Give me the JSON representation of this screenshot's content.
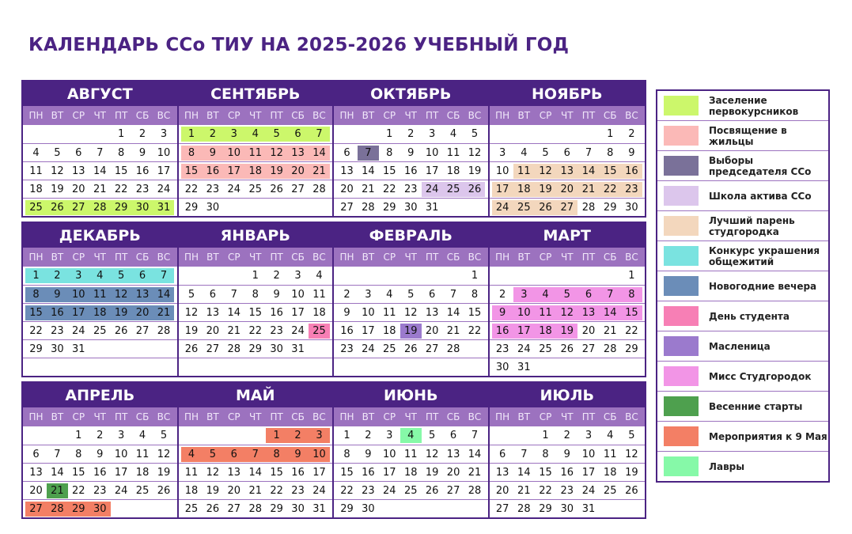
{
  "title": "КАЛЕНДАРЬ ССо ТИУ НА 2025-2026 УЧЕБНЫЙ ГОД",
  "weekdays": [
    "ПН",
    "ВТ",
    "СР",
    "ЧТ",
    "ПТ",
    "СБ",
    "ВС"
  ],
  "legend": [
    {
      "key": "zas",
      "label": "Заселение первокурсников",
      "color": "#ccf76b"
    },
    {
      "key": "pos",
      "label": "Посвящение в жильцы",
      "color": "#fbb9b7"
    },
    {
      "key": "vyb",
      "label": "Выборы председателя ССо",
      "color": "#7a7199"
    },
    {
      "key": "shk",
      "label": "Школа актива ССо",
      "color": "#dcc6ec"
    },
    {
      "key": "lpa",
      "label": "Лучший парень студгородка",
      "color": "#f3d7bd"
    },
    {
      "key": "kon",
      "label": "Конкурс украшения общежитий",
      "color": "#7ae3e0"
    },
    {
      "key": "nov",
      "label": "Новогодние вечера",
      "color": "#6b8db8"
    },
    {
      "key": "den",
      "label": "День студента",
      "color": "#f77fb5"
    },
    {
      "key": "mas",
      "label": "Масленица",
      "color": "#9b7acd"
    },
    {
      "key": "mis",
      "label": "Мисс Студгородок",
      "color": "#f295e6"
    },
    {
      "key": "ves",
      "label": "Весенние старты",
      "color": "#4ea04e"
    },
    {
      "key": "may",
      "label": "Мероприятия к 9 Мая",
      "color": "#f37f65"
    },
    {
      "key": "lav",
      "label": "Лавры",
      "color": "#86f9a8"
    }
  ],
  "bands": [
    {
      "rows": 5,
      "months": [
        {
          "name": "АВГУСТ",
          "start_weekday": 5,
          "days": 31,
          "events": [
            {
              "from": 25,
              "to": 31,
              "event": "zas"
            }
          ]
        },
        {
          "name": "СЕНТЯБРЬ",
          "start_weekday": 1,
          "days": 30,
          "events": [
            {
              "from": 1,
              "to": 7,
              "event": "zas"
            },
            {
              "from": 8,
              "to": 21,
              "event": "pos"
            }
          ]
        },
        {
          "name": "ОКТЯБРЬ",
          "start_weekday": 3,
          "days": 31,
          "events": [
            {
              "from": 7,
              "to": 7,
              "event": "vyb"
            },
            {
              "from": 24,
              "to": 26,
              "event": "shk"
            }
          ]
        },
        {
          "name": "НОЯБРЬ",
          "start_weekday": 6,
          "days": 30,
          "events": [
            {
              "from": 11,
              "to": 27,
              "event": "lpa"
            }
          ]
        }
      ]
    },
    {
      "rows": 6,
      "months": [
        {
          "name": "ДЕКАБРЬ",
          "start_weekday": 1,
          "days": 31,
          "events": [
            {
              "from": 1,
              "to": 7,
              "event": "kon"
            },
            {
              "from": 8,
              "to": 21,
              "event": "nov"
            }
          ]
        },
        {
          "name": "ЯНВАРЬ",
          "start_weekday": 4,
          "days": 31,
          "events": [
            {
              "from": 25,
              "to": 25,
              "event": "den"
            }
          ]
        },
        {
          "name": "ФЕВРАЛЬ",
          "start_weekday": 7,
          "days": 28,
          "events": [
            {
              "from": 19,
              "to": 19,
              "event": "mas"
            }
          ]
        },
        {
          "name": "МАРТ",
          "start_weekday": 7,
          "days": 31,
          "events": [
            {
              "from": 3,
              "to": 19,
              "event": "mis"
            }
          ]
        }
      ]
    },
    {
      "rows": 5,
      "months": [
        {
          "name": "АПРЕЛЬ",
          "start_weekday": 3,
          "days": 30,
          "events": [
            {
              "from": 21,
              "to": 21,
              "event": "ves"
            },
            {
              "from": 27,
              "to": 30,
              "event": "may"
            }
          ]
        },
        {
          "name": "МАЙ",
          "start_weekday": 5,
          "days": 31,
          "events": [
            {
              "from": 1,
              "to": 10,
              "event": "may"
            }
          ]
        },
        {
          "name": "ИЮНЬ",
          "start_weekday": 1,
          "days": 30,
          "events": [
            {
              "from": 4,
              "to": 4,
              "event": "lav"
            }
          ]
        },
        {
          "name": "ИЮЛЬ",
          "start_weekday": 3,
          "days": 31,
          "events": []
        }
      ]
    }
  ]
}
